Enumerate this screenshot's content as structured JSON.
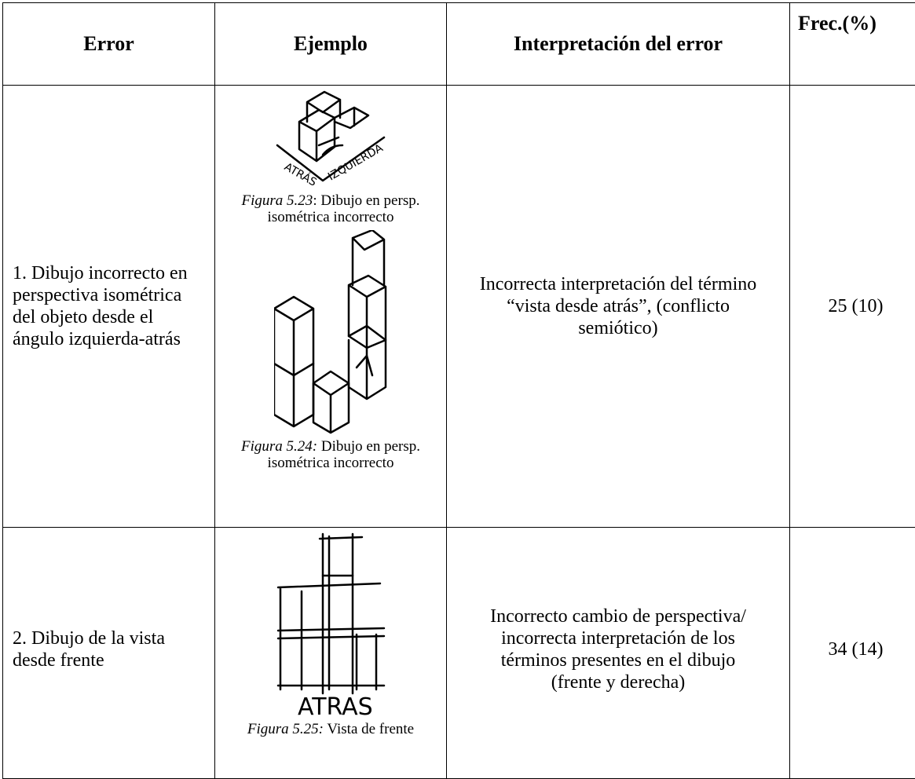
{
  "table": {
    "header": [
      "Error",
      "Ejemplo",
      "Interpretación del error",
      "Frec.(%)"
    ],
    "rows": [
      {
        "error": "1. Dibujo incorrecto en perspectiva isométrica del objeto desde el ángulo izquierda-atrás",
        "examples": [
          {
            "sketch_labels": [
              "ATRÁS",
              "IZQUIERDA"
            ],
            "figure": "Figura 5.23",
            "caption": ": Dibujo en persp. isométrica incorrecto"
          },
          {
            "figure": "Figura 5.24:",
            "caption": " Dibujo en persp. isométrica incorrecto"
          }
        ],
        "interpretation": "Incorrecta interpretación del término “vista desde atrás”, (conflicto semiótico)",
        "frequency": "25 (10)"
      },
      {
        "error": "2. Dibujo de la vista desde frente",
        "examples": [
          {
            "sketch_labels": [
              "ATRAS"
            ],
            "figure": "Figura 5.25:",
            "caption": " Vista de frente"
          }
        ],
        "interpretation": "Incorrecto cambio de perspectiva/ incorrecta interpretación de los términos presentes en el dibujo (frente y derecha)",
        "frequency": "34 (14)"
      }
    ]
  }
}
